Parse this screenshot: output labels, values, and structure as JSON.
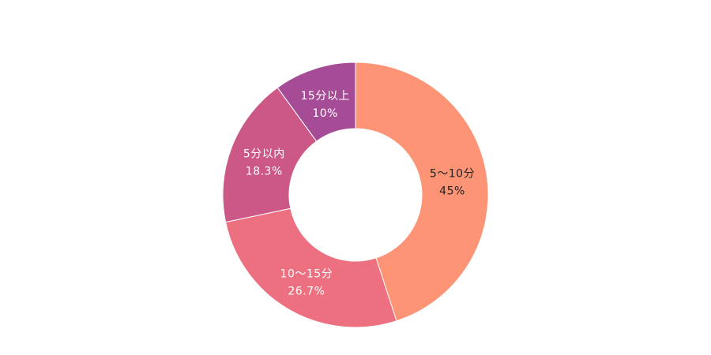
{
  "chart_data": {
    "type": "pie",
    "slices": [
      {
        "label": "5〜10分",
        "value": 45,
        "value_text": "45%",
        "color": "#FD9476",
        "label_color": "#222222"
      },
      {
        "label": "10〜15分",
        "value": 26.7,
        "value_text": "26.7%",
        "color": "#EC7080",
        "label_color": "#ffffff"
      },
      {
        "label": "5分以内",
        "value": 18.3,
        "value_text": "18.3%",
        "color": "#CC5887",
        "label_color": "#ffffff"
      },
      {
        "label": "15分以上",
        "value": 10,
        "value_text": "10%",
        "color": "#A64C96",
        "label_color": "#ffffff"
      }
    ],
    "donut": true,
    "start": "top",
    "direction": "clockwise",
    "legend": "none"
  }
}
